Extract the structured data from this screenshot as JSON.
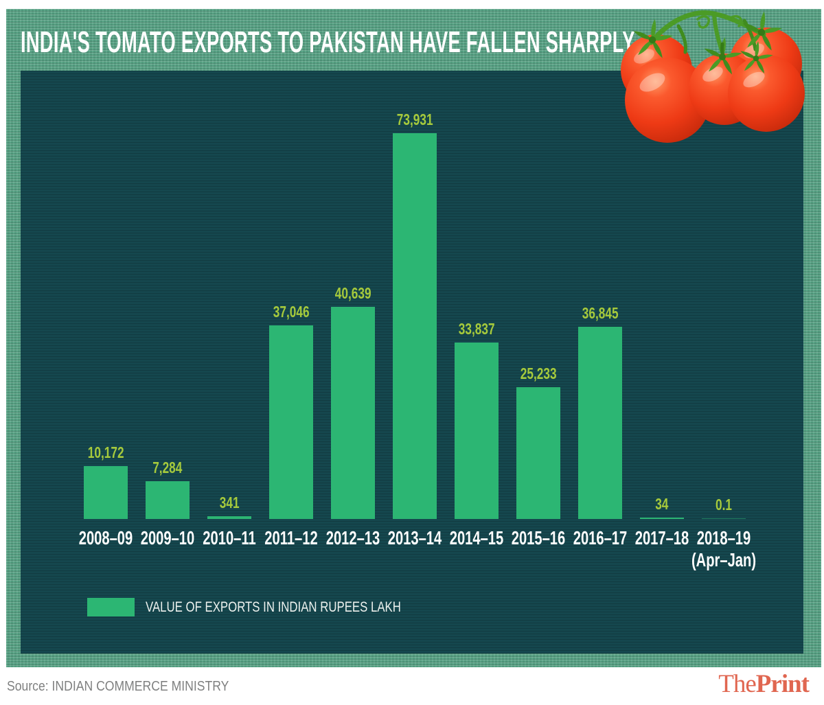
{
  "title": "INDIA'S TOMATO EXPORTS TO PAKISTAN HAVE FALLEN SHARPLY",
  "chart_data": {
    "type": "bar",
    "title": "INDIA'S TOMATO EXPORTS TO PAKISTAN HAVE FALLEN SHARPLY",
    "categories": [
      "2008–09",
      "2009–10",
      "2010–11",
      "2011–12",
      "2012–13",
      "2013–14",
      "2014–15",
      "2015–16",
      "2016–17",
      "2017–18",
      "2018–19"
    ],
    "category_sublabels": [
      null,
      null,
      null,
      null,
      null,
      null,
      null,
      null,
      null,
      null,
      "(Apr–Jan)"
    ],
    "values": [
      10172,
      7284,
      341,
      37046,
      40639,
      73931,
      33837,
      25233,
      36845,
      34,
      0.1
    ],
    "value_labels": [
      "10,172",
      "7,284",
      "341",
      "37,046",
      "40,639",
      "73,931",
      "33,837",
      "25,233",
      "36,845",
      "34",
      "0.1"
    ],
    "legend": "VALUE OF EXPORTS IN INDIAN RUPEES LAKH",
    "xlabel": "",
    "ylabel": "Value of exports in Indian rupees lakh",
    "ylim": [
      0,
      75000
    ],
    "grid": false,
    "legend_position": "bottom-left"
  },
  "legend": {
    "label": "VALUE OF EXPORTS IN INDIAN RUPEES LAKH"
  },
  "footer": {
    "source": "Source: INDIAN COMMERCE MINISTRY",
    "brand_the": "The",
    "brand_print": "Print"
  },
  "colors": {
    "bar": "#2cb673",
    "value_label": "#a6ca3c",
    "panel_bg": "#15474e",
    "frame_bg": "#55a284",
    "title_text": "#ffffff",
    "category_text": "#ffffff",
    "source_text": "#7f8080",
    "brand": "#e06650",
    "tomato_red": "#ee3a15",
    "tomato_stem_green": "#4b9b26"
  }
}
